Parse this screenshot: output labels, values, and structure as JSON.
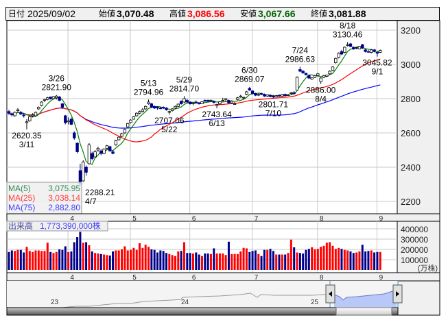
{
  "header": {
    "date_label": "日付",
    "date": "2025/09/02",
    "open_label": "始値",
    "open": "3,070.48",
    "high_label": "高値",
    "high": "3,086.56",
    "low_label": "安値",
    "low": "3,067.66",
    "close_label": "終値",
    "close": "3,081.88",
    "high_color": "#ff0000",
    "low_color": "#006400"
  },
  "legend": {
    "ma5_label": "MA(5)",
    "ma5": "3,075.95",
    "ma25_label": "MA(25)",
    "ma25": "3,038.14",
    "ma75_label": "MA(75)",
    "ma75": "2,882.80",
    "volume_label": "出来高",
    "volume": "1,773,390,000株"
  },
  "colors": {
    "up_candle": "#ffffff",
    "down_candle": "#00008b",
    "up_volume": "#ff0000",
    "down_volume": "#00008b",
    "ma5": "#008000",
    "ma25": "#ff0000",
    "ma75": "#0000ff"
  },
  "chart_data": [
    {
      "type": "candlestick",
      "ylim": [
        2130,
        3245
      ],
      "y_ticks": [
        "3200",
        "3000",
        "2800",
        "2600",
        "2400",
        "2200"
      ],
      "y_tick_values": [
        3200,
        3000,
        2800,
        2600,
        2400,
        2200
      ],
      "x_ticks": [
        {
          "label": "4",
          "index": 20
        },
        {
          "label": "5",
          "index": 41
        },
        {
          "label": "6",
          "index": 61
        },
        {
          "label": "7",
          "index": 82
        },
        {
          "label": "8",
          "index": 104
        },
        {
          "label": "9",
          "index": 124
        }
      ],
      "grid": true,
      "months": [
        {
          "month": "3",
          "candles": [
            [
              2725,
              2735,
              2705,
              2715
            ],
            [
              2712,
              2720,
              2695,
              2705
            ],
            [
              2700,
              2725,
              2695,
              2720
            ],
            [
              2730,
              2745,
              2720,
              2735
            ],
            [
              2720,
              2728,
              2705,
              2710
            ],
            [
              2705,
              2715,
              2690,
              2700
            ],
            [
              2660,
              2680,
              2620.35,
              2665
            ],
            [
              2670,
              2700,
              2665,
              2695
            ],
            [
              2700,
              2715,
              2690,
              2705
            ],
            [
              2700,
              2725,
              2695,
              2720
            ],
            [
              2740,
              2755,
              2735,
              2750
            ],
            [
              2760,
              2785,
              2755,
              2780
            ],
            [
              2790,
              2800,
              2780,
              2795
            ],
            [
              2795,
              2810,
              2790,
              2805
            ],
            [
              2810,
              2812,
              2795,
              2800
            ],
            [
              2800,
              2815,
              2795,
              2812
            ],
            [
              2805,
              2821.9,
              2795,
              2815
            ],
            [
              2810,
              2815,
              2785,
              2790
            ],
            [
              2770,
              2775,
              2740,
              2750
            ],
            [
              2700,
              2705,
              2650,
              2660
            ]
          ]
        },
        {
          "month": "4",
          "candles": [
            [
              2665,
              2690,
              2650,
              2670
            ],
            [
              2680,
              2690,
              2645,
              2650
            ],
            [
              2600,
              2610,
              2560,
              2570
            ],
            [
              2540,
              2545,
              2480,
              2490
            ],
            [
              2380,
              2420,
              2288.21,
              2300
            ],
            [
              2320,
              2440,
              2315,
              2430
            ],
            [
              2400,
              2410,
              2350,
              2370
            ],
            [
              2420,
              2540,
              2415,
              2530
            ],
            [
              2480,
              2490,
              2440,
              2450
            ],
            [
              2460,
              2500,
              2455,
              2490
            ],
            [
              2500,
              2520,
              2490,
              2510
            ],
            [
              2495,
              2505,
              2470,
              2480
            ],
            [
              2480,
              2510,
              2475,
              2505
            ],
            [
              2510,
              2530,
              2500,
              2525
            ],
            [
              2520,
              2525,
              2490,
              2495
            ],
            [
              2490,
              2500,
              2475,
              2480
            ],
            [
              2530,
              2560,
              2525,
              2555
            ],
            [
              2560,
              2580,
              2555,
              2575
            ],
            [
              2580,
              2600,
              2575,
              2595
            ],
            [
              2600,
              2625,
              2595,
              2620
            ],
            [
              2635,
              2660,
              2630,
              2655
            ]
          ]
        },
        {
          "month": "5",
          "candles": [
            [
              2660,
              2680,
              2655,
              2675
            ],
            [
              2680,
              2700,
              2678,
              2695
            ],
            [
              2700,
              2720,
              2695,
              2715
            ],
            [
              2715,
              2730,
              2710,
              2725
            ],
            [
              2725,
              2745,
              2720,
              2735
            ],
            [
              2740,
              2760,
              2735,
              2755
            ],
            [
              2770,
              2794.96,
              2765,
              2780
            ],
            [
              2770,
              2775,
              2745,
              2750
            ],
            [
              2755,
              2760,
              2740,
              2745
            ],
            [
              2750,
              2755,
              2735,
              2745
            ],
            [
              2745,
              2752,
              2738,
              2742
            ],
            [
              2750,
              2755,
              2740,
              2745
            ],
            [
              2745,
              2750,
              2730,
              2735
            ],
            [
              2720,
              2730,
              2707.06,
              2725
            ],
            [
              2730,
              2745,
              2725,
              2740
            ],
            [
              2745,
              2760,
              2740,
              2755
            ],
            [
              2755,
              2772,
              2750,
              2768
            ],
            [
              2785,
              2790,
              2765,
              2770
            ],
            [
              2780,
              2814.7,
              2775,
              2800
            ],
            [
              2790,
              2800,
              2775,
              2780
            ]
          ]
        },
        {
          "month": "6",
          "candles": [
            [
              2780,
              2785,
              2765,
              2770
            ],
            [
              2770,
              2778,
              2760,
              2775
            ],
            [
              2780,
              2790,
              2770,
              2775
            ],
            [
              2775,
              2780,
              2765,
              2770
            ],
            [
              2770,
              2785,
              2768,
              2782
            ],
            [
              2790,
              2795,
              2782,
              2785
            ],
            [
              2790,
              2795,
              2780,
              2785
            ],
            [
              2788,
              2795,
              2780,
              2790
            ],
            [
              2785,
              2790,
              2772,
              2778
            ],
            [
              2760,
              2770,
              2743.64,
              2765
            ],
            [
              2770,
              2785,
              2765,
              2782
            ],
            [
              2790,
              2805,
              2785,
              2790
            ],
            [
              2795,
              2802,
              2785,
              2800
            ],
            [
              2790,
              2795,
              2770,
              2775
            ],
            [
              2775,
              2790,
              2770,
              2785
            ],
            [
              2770,
              2780,
              2765,
              2770
            ],
            [
              2795,
              2810,
              2790,
              2805
            ],
            [
              2810,
              2822,
              2805,
              2815
            ],
            [
              2805,
              2810,
              2795,
              2808
            ],
            [
              2825,
              2845,
              2820,
              2840
            ],
            [
              2860,
              2869.07,
              2845,
              2850
            ]
          ]
        },
        {
          "month": "7",
          "candles": [
            [
              2845,
              2850,
              2825,
              2830
            ],
            [
              2830,
              2835,
              2815,
              2820
            ],
            [
              2820,
              2830,
              2815,
              2825
            ],
            [
              2830,
              2835,
              2820,
              2825
            ],
            [
              2825,
              2830,
              2810,
              2815
            ],
            [
              2815,
              2825,
              2810,
              2822
            ],
            [
              2820,
              2825,
              2808,
              2812
            ],
            [
              2815,
              2822,
              2801.71,
              2810
            ],
            [
              2812,
              2822,
              2808,
              2818
            ],
            [
              2820,
              2825,
              2810,
              2815
            ],
            [
              2815,
              2828,
              2812,
              2825
            ],
            [
              2825,
              2830,
              2812,
              2818
            ],
            [
              2818,
              2828,
              2815,
              2822
            ],
            [
              2830,
              2840,
              2822,
              2835
            ],
            [
              2835,
              2845,
              2825,
              2830
            ],
            [
              2850,
              2930,
              2848,
              2925
            ],
            [
              2970,
              2986.63,
              2955,
              2960
            ],
            [
              2960,
              2968,
              2945,
              2950
            ],
            [
              2948,
              2952,
              2935,
              2940
            ],
            [
              2935,
              2940,
              2915,
              2920
            ],
            [
              2915,
              2925,
              2910,
              2922
            ],
            [
              2925,
              2940,
              2920,
              2935
            ]
          ]
        },
        {
          "month": "8",
          "candles": [
            [
              2935,
              2950,
              2930,
              2945
            ],
            [
              2900,
              2925,
              2886,
              2920
            ],
            [
              2925,
              2940,
              2920,
              2935
            ],
            [
              2930,
              2940,
              2925,
              2938
            ],
            [
              2945,
              2965,
              2940,
              2960
            ],
            [
              2965,
              2990,
              2960,
              2985
            ],
            [
              3010,
              3040,
              3005,
              3035
            ],
            [
              3040,
              3070,
              3035,
              3065
            ],
            [
              3075,
              3085,
              3055,
              3060
            ],
            [
              3070,
              3105,
              3065,
              3100
            ],
            [
              3110,
              3130.46,
              3105,
              3115
            ],
            [
              3120,
              3125,
              3100,
              3105
            ],
            [
              3100,
              3105,
              3085,
              3090
            ],
            [
              3095,
              3102,
              3088,
              3098
            ],
            [
              3090,
              3108,
              3088,
              3105
            ],
            [
              3115,
              3120,
              3090,
              3095
            ],
            [
              3085,
              3090,
              3070,
              3075
            ],
            [
              3075,
              3085,
              3068,
              3072
            ],
            [
              3070,
              3090,
              3065,
              3085
            ],
            [
              3085,
              3090,
              3070,
              3075
            ]
          ]
        },
        {
          "month": "9",
          "candles": [
            [
              3070,
              3075,
              3045.82,
              3065
            ],
            [
              3070.48,
              3086.56,
              3067.66,
              3081.88
            ]
          ]
        }
      ],
      "annotations": [
        {
          "date": "3/11",
          "value": "2620.35",
          "index": 6,
          "kind": "low"
        },
        {
          "date": "3/26",
          "value": "2821.90",
          "index": 16,
          "kind": "high"
        },
        {
          "date": "4/7",
          "value": "2288.21",
          "index": 24,
          "kind": "low"
        },
        {
          "date": "5/13",
          "value": "2794.96",
          "index": 47,
          "kind": "high"
        },
        {
          "date": "5/22",
          "value": "2707.06",
          "index": 54,
          "kind": "low"
        },
        {
          "date": "5/29",
          "value": "2814.70",
          "index": 59,
          "kind": "high"
        },
        {
          "date": "6/13",
          "value": "2743.64",
          "index": 70,
          "kind": "low"
        },
        {
          "date": "6/30",
          "value": "2869.07",
          "index": 81,
          "kind": "high"
        },
        {
          "date": "7/10",
          "value": "2801.71",
          "index": 89,
          "kind": "low"
        },
        {
          "date": "7/24",
          "value": "2986.63",
          "index": 98,
          "kind": "high"
        },
        {
          "date": "8/4",
          "value": "2886.00",
          "index": 105,
          "kind": "low"
        },
        {
          "date": "8/18",
          "value": "3130.46",
          "index": 114,
          "kind": "high"
        },
        {
          "date": "9/1",
          "value": "3045.82",
          "index": 124,
          "kind": "low"
        }
      ]
    },
    {
      "type": "bar",
      "ylim": [
        0,
        420000
      ],
      "y_ticks": [
        "400000",
        "300000",
        "200000",
        "100000"
      ],
      "y_tick_values": [
        400000,
        300000,
        200000,
        100000
      ],
      "unit": "(万株)",
      "values": [
        175000,
        190000,
        185000,
        195000,
        195000,
        170000,
        225000,
        185000,
        175000,
        190000,
        190000,
        185000,
        185000,
        265000,
        175000,
        165000,
        175000,
        200000,
        195000,
        230000,
        175000,
        180000,
        270000,
        320000,
        370000,
        265000,
        270000,
        240000,
        180000,
        165000,
        160000,
        155000,
        150000,
        145000,
        140000,
        180000,
        190000,
        190000,
        200000,
        230000,
        190000,
        195000,
        215000,
        195000,
        260000,
        215000,
        245000,
        225000,
        200000,
        195000,
        170000,
        190000,
        185000,
        165000,
        155000,
        145000,
        135000,
        180000,
        185000,
        270000,
        165000,
        165000,
        160000,
        170000,
        150000,
        135000,
        160000,
        160000,
        155000,
        210000,
        160000,
        160000,
        160000,
        145000,
        275000,
        155000,
        155000,
        155000,
        180000,
        215000,
        210000,
        175000,
        185000,
        190000,
        155000,
        135000,
        195000,
        195000,
        205000,
        185000,
        150000,
        150000,
        150000,
        150000,
        165000,
        295000,
        220000,
        170000,
        165000,
        160000,
        195000,
        205000,
        220000,
        200000,
        205000,
        225000,
        235000,
        265000,
        270000,
        235000,
        205000,
        215000,
        205000,
        195000,
        190000,
        180000,
        165000,
        170000,
        180000,
        245000,
        180000,
        185000,
        190000,
        170000,
        175000,
        175000
      ]
    }
  ],
  "navigator": {
    "year_labels": [
      "23",
      "24",
      "25"
    ]
  }
}
